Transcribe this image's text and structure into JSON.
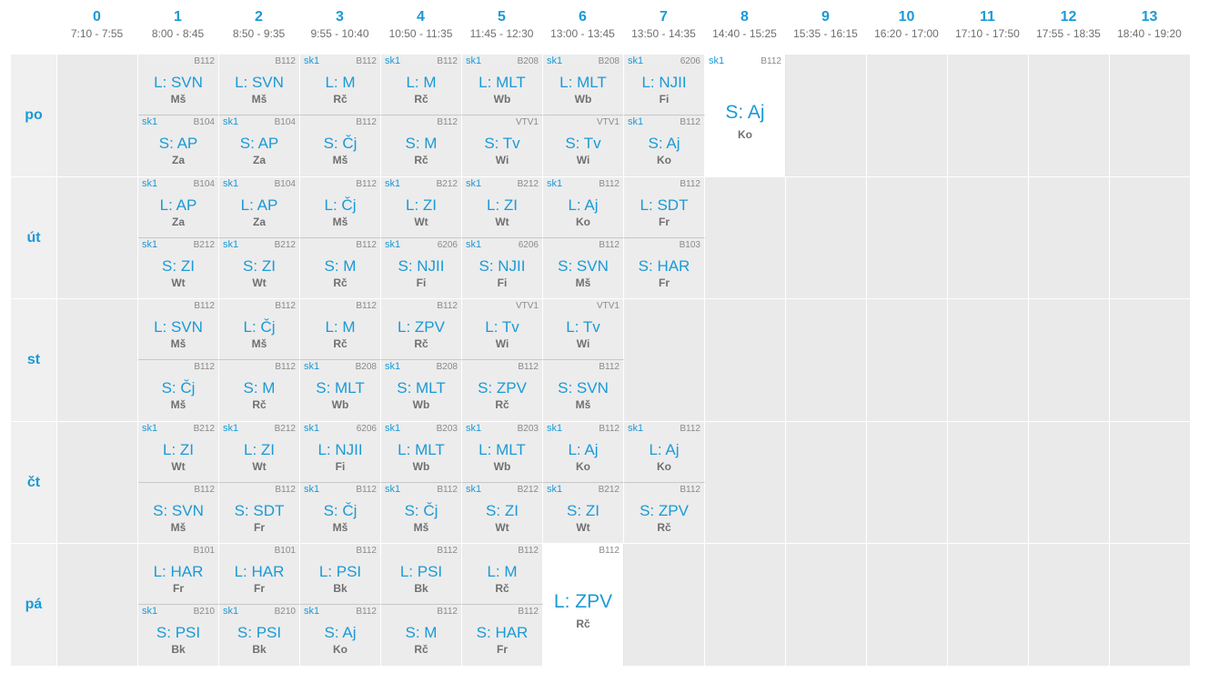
{
  "periods": [
    {
      "num": "0",
      "time": "7:10 - 7:55"
    },
    {
      "num": "1",
      "time": "8:00 - 8:45"
    },
    {
      "num": "2",
      "time": "8:50 - 9:35"
    },
    {
      "num": "3",
      "time": "9:55 - 10:40"
    },
    {
      "num": "4",
      "time": "10:50 - 11:35"
    },
    {
      "num": "5",
      "time": "11:45 - 12:30"
    },
    {
      "num": "6",
      "time": "13:00 - 13:45"
    },
    {
      "num": "7",
      "time": "13:50 - 14:35"
    },
    {
      "num": "8",
      "time": "14:40 - 15:25"
    },
    {
      "num": "9",
      "time": "15:35 - 16:15"
    },
    {
      "num": "10",
      "time": "16:20 - 17:00"
    },
    {
      "num": "11",
      "time": "17:10 - 17:50"
    },
    {
      "num": "12",
      "time": "17:55 - 18:35"
    },
    {
      "num": "13",
      "time": "18:40 - 19:20"
    }
  ],
  "days": [
    {
      "name": "po",
      "cells": [
        {
          "p": 1,
          "h": "top",
          "group": "",
          "room": "B112",
          "subject": "L: SVN",
          "teacher": "Mš"
        },
        {
          "p": 2,
          "h": "top",
          "group": "",
          "room": "B112",
          "subject": "L: SVN",
          "teacher": "Mš"
        },
        {
          "p": 3,
          "h": "top",
          "group": "sk1",
          "room": "B112",
          "subject": "L: M",
          "teacher": "Rč"
        },
        {
          "p": 4,
          "h": "top",
          "group": "sk1",
          "room": "B112",
          "subject": "L: M",
          "teacher": "Rč"
        },
        {
          "p": 5,
          "h": "top",
          "group": "sk1",
          "room": "B208",
          "subject": "L: MLT",
          "teacher": "Wb"
        },
        {
          "p": 6,
          "h": "top",
          "group": "sk1",
          "room": "B208",
          "subject": "L: MLT",
          "teacher": "Wb"
        },
        {
          "p": 7,
          "h": "top",
          "group": "sk1",
          "room": "6206",
          "subject": "L: NJII",
          "teacher": "Fi"
        },
        {
          "p": 8,
          "h": "full",
          "group": "sk1",
          "room": "B112",
          "subject": "S: Aj",
          "teacher": "Ko"
        },
        {
          "p": 1,
          "h": "bottom",
          "group": "sk1",
          "room": "B104",
          "subject": "S: AP",
          "teacher": "Za"
        },
        {
          "p": 2,
          "h": "bottom",
          "group": "sk1",
          "room": "B104",
          "subject": "S: AP",
          "teacher": "Za"
        },
        {
          "p": 3,
          "h": "bottom",
          "group": "",
          "room": "B112",
          "subject": "S: Čj",
          "teacher": "Mš"
        },
        {
          "p": 4,
          "h": "bottom",
          "group": "",
          "room": "B112",
          "subject": "S: M",
          "teacher": "Rč"
        },
        {
          "p": 5,
          "h": "bottom",
          "group": "",
          "room": "VTV1",
          "subject": "S: Tv",
          "teacher": "Wi"
        },
        {
          "p": 6,
          "h": "bottom",
          "group": "",
          "room": "VTV1",
          "subject": "S: Tv",
          "teacher": "Wi"
        },
        {
          "p": 7,
          "h": "bottom",
          "group": "sk1",
          "room": "B112",
          "subject": "S: Aj",
          "teacher": "Ko"
        }
      ]
    },
    {
      "name": "út",
      "cells": [
        {
          "p": 1,
          "h": "top",
          "group": "sk1",
          "room": "B104",
          "subject": "L: AP",
          "teacher": "Za"
        },
        {
          "p": 2,
          "h": "top",
          "group": "sk1",
          "room": "B104",
          "subject": "L: AP",
          "teacher": "Za"
        },
        {
          "p": 3,
          "h": "top",
          "group": "",
          "room": "B112",
          "subject": "L: Čj",
          "teacher": "Mš"
        },
        {
          "p": 4,
          "h": "top",
          "group": "sk1",
          "room": "B212",
          "subject": "L: ZI",
          "teacher": "Wt"
        },
        {
          "p": 5,
          "h": "top",
          "group": "sk1",
          "room": "B212",
          "subject": "L: ZI",
          "teacher": "Wt"
        },
        {
          "p": 6,
          "h": "top",
          "group": "sk1",
          "room": "B112",
          "subject": "L: Aj",
          "teacher": "Ko"
        },
        {
          "p": 7,
          "h": "top",
          "group": "",
          "room": "B112",
          "subject": "L: SDT",
          "teacher": "Fr"
        },
        {
          "p": 1,
          "h": "bottom",
          "group": "sk1",
          "room": "B212",
          "subject": "S: ZI",
          "teacher": "Wt"
        },
        {
          "p": 2,
          "h": "bottom",
          "group": "sk1",
          "room": "B212",
          "subject": "S: ZI",
          "teacher": "Wt"
        },
        {
          "p": 3,
          "h": "bottom",
          "group": "",
          "room": "B112",
          "subject": "S: M",
          "teacher": "Rč"
        },
        {
          "p": 4,
          "h": "bottom",
          "group": "sk1",
          "room": "6206",
          "subject": "S: NJII",
          "teacher": "Fi"
        },
        {
          "p": 5,
          "h": "bottom",
          "group": "sk1",
          "room": "6206",
          "subject": "S: NJII",
          "teacher": "Fi"
        },
        {
          "p": 6,
          "h": "bottom",
          "group": "",
          "room": "B112",
          "subject": "S: SVN",
          "teacher": "Mš"
        },
        {
          "p": 7,
          "h": "bottom",
          "group": "",
          "room": "B103",
          "subject": "S: HAR",
          "teacher": "Fr"
        }
      ]
    },
    {
      "name": "st",
      "cells": [
        {
          "p": 1,
          "h": "top",
          "group": "",
          "room": "B112",
          "subject": "L: SVN",
          "teacher": "Mš"
        },
        {
          "p": 2,
          "h": "top",
          "group": "",
          "room": "B112",
          "subject": "L: Čj",
          "teacher": "Mš"
        },
        {
          "p": 3,
          "h": "top",
          "group": "",
          "room": "B112",
          "subject": "L: M",
          "teacher": "Rč"
        },
        {
          "p": 4,
          "h": "top",
          "group": "",
          "room": "B112",
          "subject": "L: ZPV",
          "teacher": "Rč"
        },
        {
          "p": 5,
          "h": "top",
          "group": "",
          "room": "VTV1",
          "subject": "L: Tv",
          "teacher": "Wi"
        },
        {
          "p": 6,
          "h": "top",
          "group": "",
          "room": "VTV1",
          "subject": "L: Tv",
          "teacher": "Wi"
        },
        {
          "p": 1,
          "h": "bottom",
          "group": "",
          "room": "B112",
          "subject": "S: Čj",
          "teacher": "Mš"
        },
        {
          "p": 2,
          "h": "bottom",
          "group": "",
          "room": "B112",
          "subject": "S: M",
          "teacher": "Rč"
        },
        {
          "p": 3,
          "h": "bottom",
          "group": "sk1",
          "room": "B208",
          "subject": "S: MLT",
          "teacher": "Wb"
        },
        {
          "p": 4,
          "h": "bottom",
          "group": "sk1",
          "room": "B208",
          "subject": "S: MLT",
          "teacher": "Wb"
        },
        {
          "p": 5,
          "h": "bottom",
          "group": "",
          "room": "B112",
          "subject": "S: ZPV",
          "teacher": "Rč"
        },
        {
          "p": 6,
          "h": "bottom",
          "group": "",
          "room": "B112",
          "subject": "S: SVN",
          "teacher": "Mš"
        }
      ]
    },
    {
      "name": "čt",
      "cells": [
        {
          "p": 1,
          "h": "top",
          "group": "sk1",
          "room": "B212",
          "subject": "L: ZI",
          "teacher": "Wt"
        },
        {
          "p": 2,
          "h": "top",
          "group": "sk1",
          "room": "B212",
          "subject": "L: ZI",
          "teacher": "Wt"
        },
        {
          "p": 3,
          "h": "top",
          "group": "sk1",
          "room": "6206",
          "subject": "L: NJII",
          "teacher": "Fi"
        },
        {
          "p": 4,
          "h": "top",
          "group": "sk1",
          "room": "B203",
          "subject": "L: MLT",
          "teacher": "Wb"
        },
        {
          "p": 5,
          "h": "top",
          "group": "sk1",
          "room": "B203",
          "subject": "L: MLT",
          "teacher": "Wb"
        },
        {
          "p": 6,
          "h": "top",
          "group": "sk1",
          "room": "B112",
          "subject": "L: Aj",
          "teacher": "Ko"
        },
        {
          "p": 7,
          "h": "top",
          "group": "sk1",
          "room": "B112",
          "subject": "L: Aj",
          "teacher": "Ko"
        },
        {
          "p": 1,
          "h": "bottom",
          "group": "",
          "room": "B112",
          "subject": "S: SVN",
          "teacher": "Mš"
        },
        {
          "p": 2,
          "h": "bottom",
          "group": "",
          "room": "B112",
          "subject": "S: SDT",
          "teacher": "Fr"
        },
        {
          "p": 3,
          "h": "bottom",
          "group": "sk1",
          "room": "B112",
          "subject": "S: Čj",
          "teacher": "Mš"
        },
        {
          "p": 4,
          "h": "bottom",
          "group": "sk1",
          "room": "B112",
          "subject": "S: Čj",
          "teacher": "Mš"
        },
        {
          "p": 5,
          "h": "bottom",
          "group": "sk1",
          "room": "B212",
          "subject": "S: ZI",
          "teacher": "Wt"
        },
        {
          "p": 6,
          "h": "bottom",
          "group": "sk1",
          "room": "B212",
          "subject": "S: ZI",
          "teacher": "Wt"
        },
        {
          "p": 7,
          "h": "bottom",
          "group": "",
          "room": "B112",
          "subject": "S: ZPV",
          "teacher": "Rč"
        }
      ]
    },
    {
      "name": "pá",
      "cells": [
        {
          "p": 1,
          "h": "top",
          "group": "",
          "room": "B101",
          "subject": "L: HAR",
          "teacher": "Fr"
        },
        {
          "p": 2,
          "h": "top",
          "group": "",
          "room": "B101",
          "subject": "L: HAR",
          "teacher": "Fr"
        },
        {
          "p": 3,
          "h": "top",
          "group": "",
          "room": "B112",
          "subject": "L: PSI",
          "teacher": "Bk"
        },
        {
          "p": 4,
          "h": "top",
          "group": "",
          "room": "B112",
          "subject": "L: PSI",
          "teacher": "Bk"
        },
        {
          "p": 5,
          "h": "top",
          "group": "",
          "room": "B112",
          "subject": "L: M",
          "teacher": "Rč"
        },
        {
          "p": 6,
          "h": "full",
          "group": "",
          "room": "B112",
          "subject": "L: ZPV",
          "teacher": "Rč"
        },
        {
          "p": 1,
          "h": "bottom",
          "group": "sk1",
          "room": "B210",
          "subject": "S: PSI",
          "teacher": "Bk"
        },
        {
          "p": 2,
          "h": "bottom",
          "group": "sk1",
          "room": "B210",
          "subject": "S: PSI",
          "teacher": "Bk"
        },
        {
          "p": 3,
          "h": "bottom",
          "group": "sk1",
          "room": "B112",
          "subject": "S: Aj",
          "teacher": "Ko"
        },
        {
          "p": 4,
          "h": "bottom",
          "group": "",
          "room": "B112",
          "subject": "S: M",
          "teacher": "Rč"
        },
        {
          "p": 5,
          "h": "bottom",
          "group": "",
          "room": "B112",
          "subject": "S: HAR",
          "teacher": "Fr"
        }
      ]
    }
  ]
}
